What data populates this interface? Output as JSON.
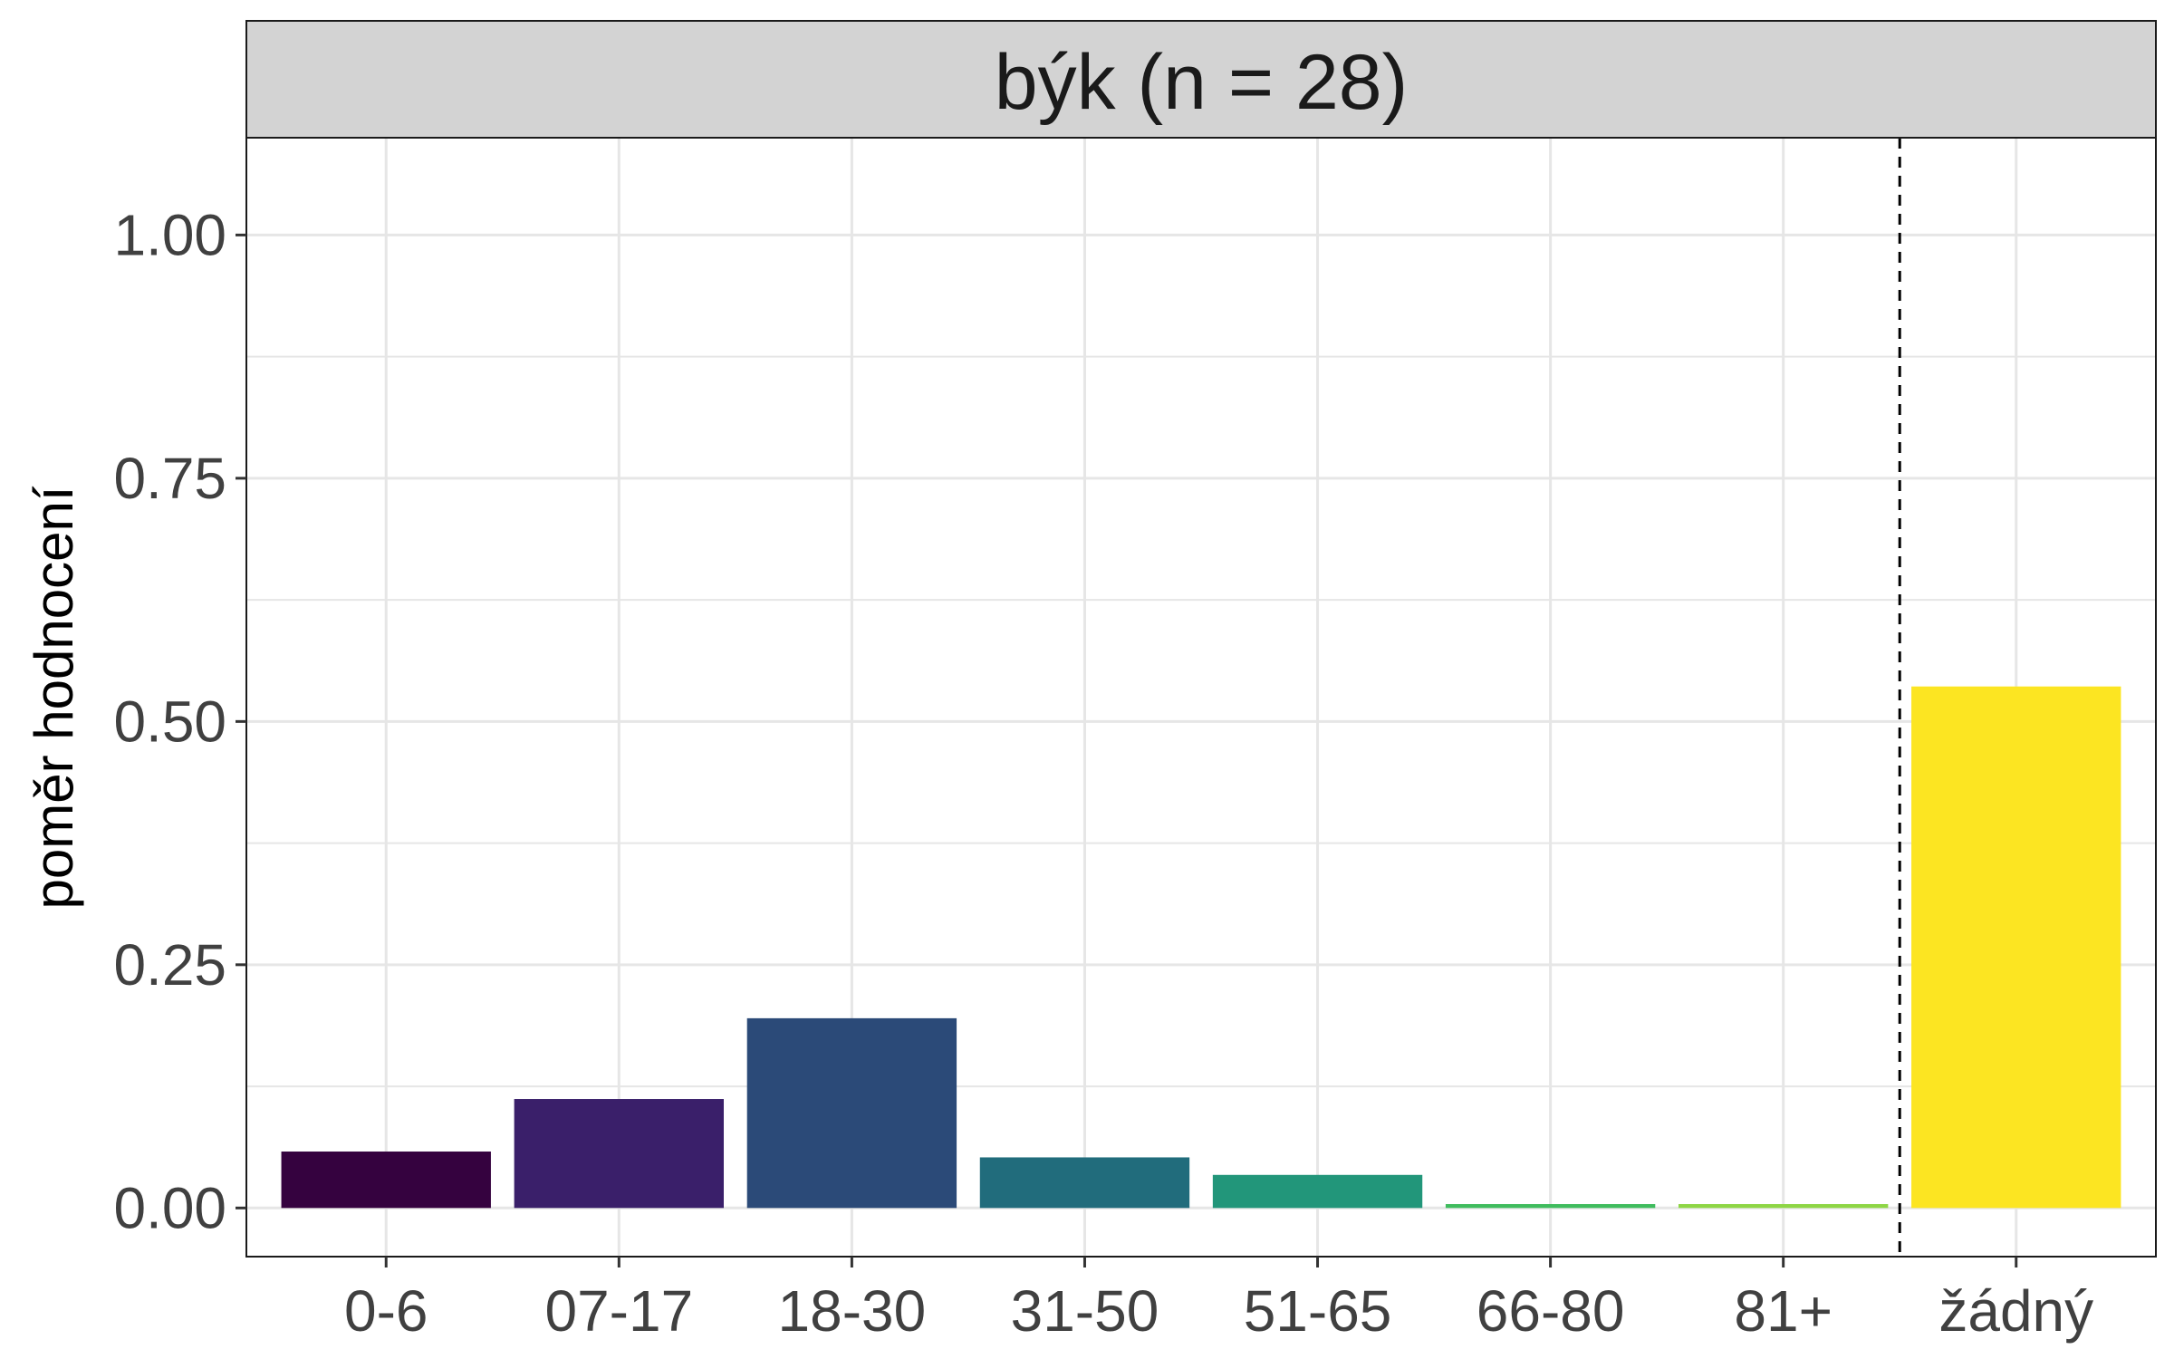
{
  "chart_data": {
    "type": "bar",
    "title": "býk (n = 28)",
    "xlabel": "",
    "ylabel": "poměr hodnocení",
    "categories": [
      "0-6",
      "07-17",
      "18-30",
      "31-50",
      "51-65",
      "66-80",
      "81+",
      "žádný"
    ],
    "values": [
      0.058,
      0.112,
      0.195,
      0.052,
      0.034,
      0.004,
      0.004,
      0.536
    ],
    "colors": [
      "#35023f",
      "#3a1f6a",
      "#2b4a78",
      "#216c7c",
      "#22967a",
      "#3fbc5e",
      "#8ed645",
      "#fce522"
    ],
    "ylim": [
      -0.05,
      1.1
    ],
    "yticks": [
      0.0,
      0.25,
      0.5,
      0.75,
      1.0
    ],
    "ytick_labels": [
      "0.00",
      "0.25",
      "0.50",
      "0.75",
      "1.00"
    ],
    "grid": true,
    "separator": {
      "style": "dashed",
      "between": [
        "81+",
        "žádný"
      ]
    },
    "colors_theme": {
      "strip_fill": "#d3d3d3",
      "panel_border": "#1a1a1a",
      "grid": "#e6e6e6",
      "tick_text": "#404040",
      "title_text": "#1a1a1a"
    }
  }
}
